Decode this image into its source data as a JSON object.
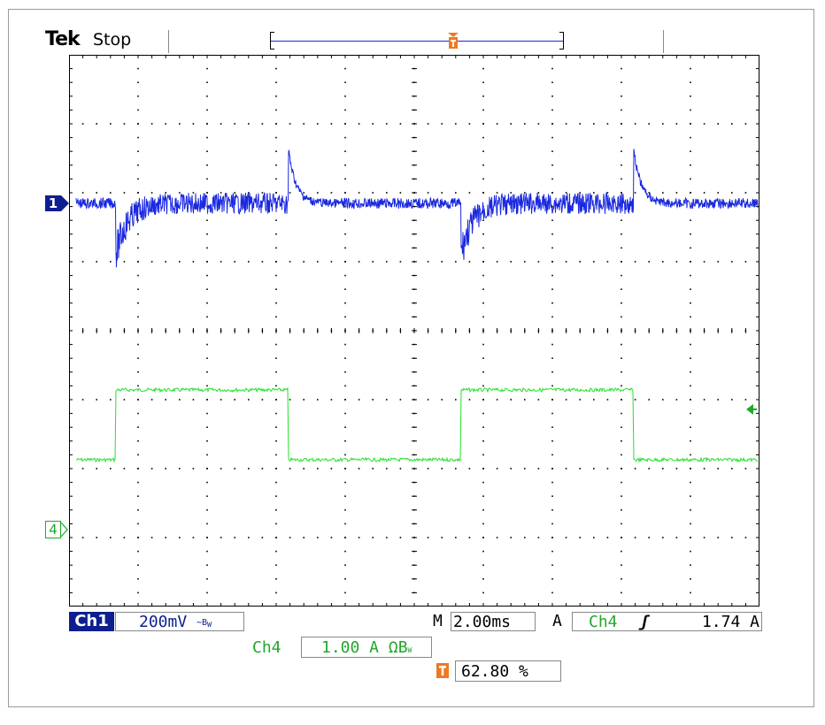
{
  "header": {
    "brand": "Tek",
    "acq_status": "Stop"
  },
  "colors": {
    "ch1": "#1a28e0",
    "ch1_marker": "#0d1f8f",
    "ch4": "#22e02a",
    "ch4_label": "#1fa82a",
    "trigger": "#f07820",
    "grid": "#000000"
  },
  "markers": {
    "ch1": "1",
    "ch4": "4"
  },
  "readouts": {
    "ch1_label": "Ch1",
    "ch1_scale": "200mV",
    "ch1_bw": "∼B",
    "ch1_bw_sub": "W",
    "m_label": "M",
    "timebase": "2.00ms",
    "trigger_mode": "A",
    "trigger_source": "Ch4",
    "trigger_slope": "ʃ",
    "trigger_level": "1.74 A",
    "ch4_label": "Ch4",
    "ch4_scale": "1.00 A ΩB",
    "ch4_bw_sub": "W",
    "trigger_position": "62.80 %"
  },
  "trigger_position_fraction": 0.628,
  "waveform": {
    "period_ms": 10,
    "duty_high_ms": 5
  }
}
